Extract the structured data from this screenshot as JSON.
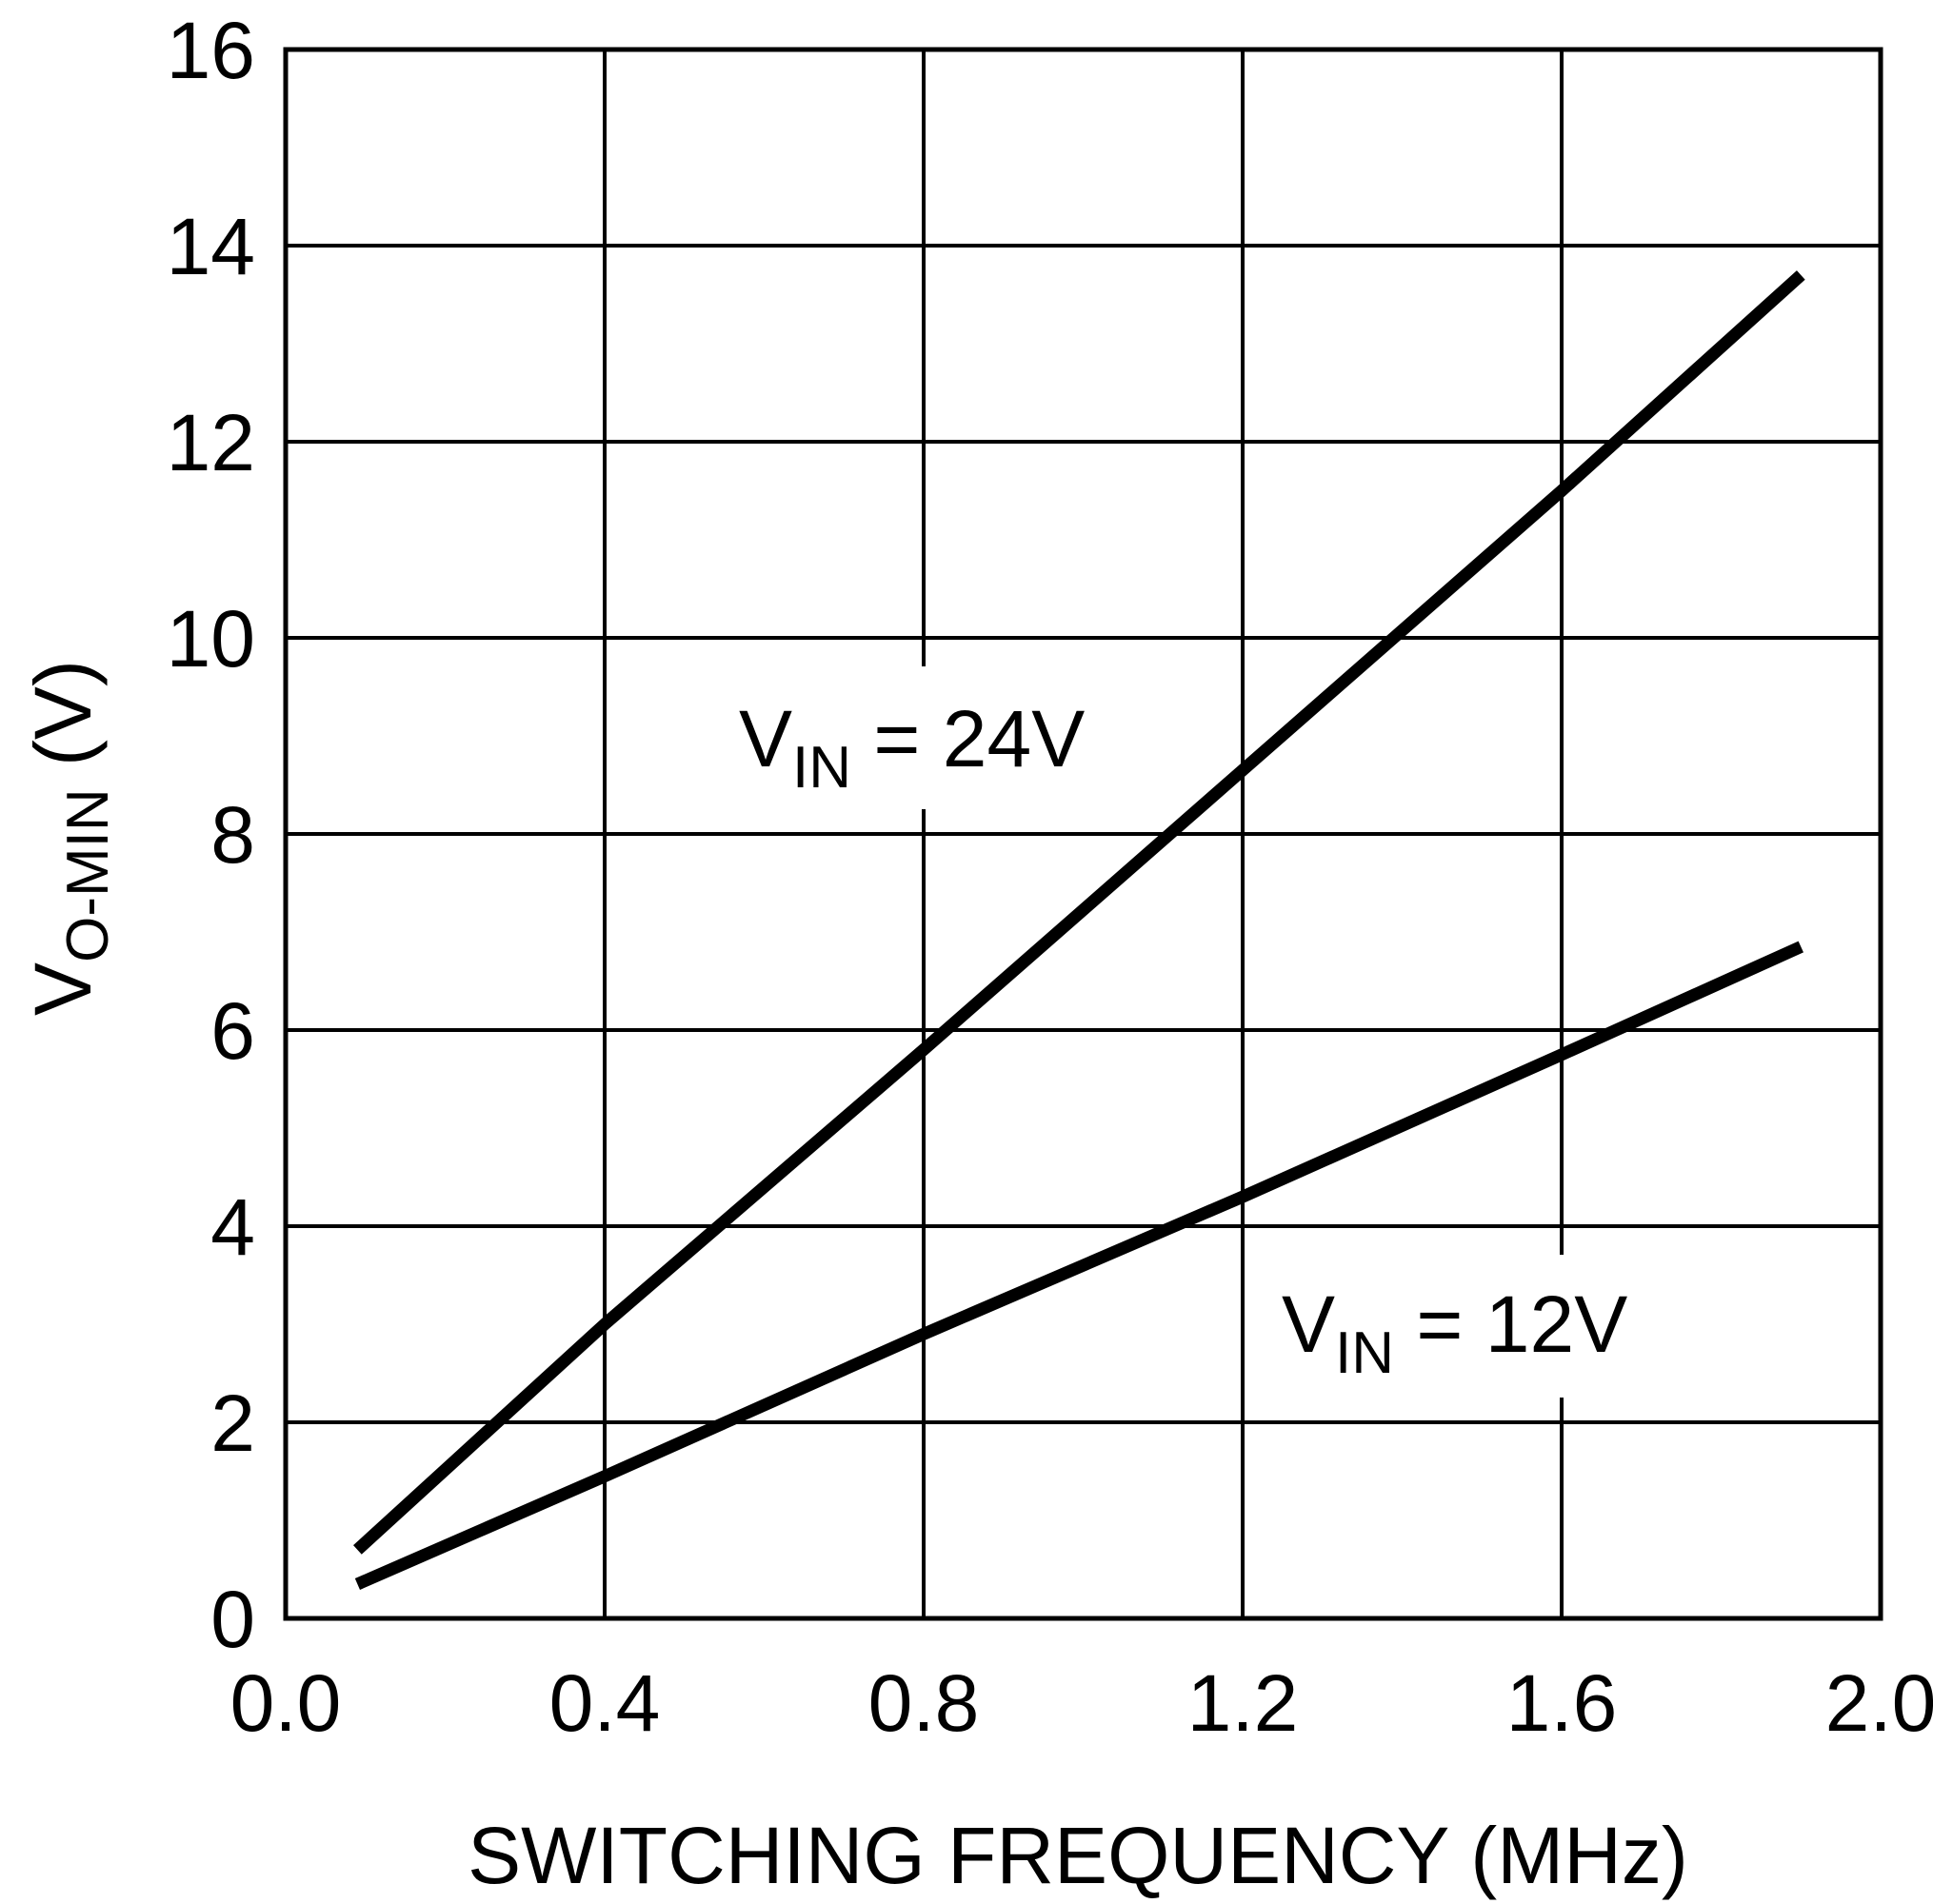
{
  "chart_data": {
    "type": "line",
    "title": "",
    "xlabel": "SWITCHING FREQUENCY  (MHz)",
    "ylabel": {
      "main": "V",
      "sub": "O-MIN",
      "suffix": " (V)"
    },
    "xlim": [
      0.0,
      2.0
    ],
    "ylim": [
      0,
      16
    ],
    "x_ticks": [
      0.0,
      0.4,
      0.8,
      1.2,
      1.6,
      2.0
    ],
    "x_tick_labels": [
      "0.0",
      "0.4",
      "0.8",
      "1.2",
      "1.6",
      "2.0"
    ],
    "y_ticks": [
      0,
      2,
      4,
      6,
      8,
      10,
      12,
      14,
      16
    ],
    "y_tick_labels": [
      "0",
      "2",
      "4",
      "6",
      "8",
      "10",
      "12",
      "14",
      "16"
    ],
    "grid": true,
    "series": [
      {
        "name": "VIN = 24V",
        "label": {
          "main": "V",
          "sub": "IN",
          "suffix": " = 24V"
        },
        "x": [
          0.09,
          0.4,
          0.8,
          1.2,
          1.6,
          1.9
        ],
        "y": [
          0.7,
          3.0,
          5.8,
          8.65,
          11.5,
          13.7
        ]
      },
      {
        "name": "VIN = 12V",
        "label": {
          "main": "V",
          "sub": "IN",
          "suffix": " = 12V"
        },
        "x": [
          0.09,
          0.4,
          0.8,
          1.2,
          1.6,
          1.9
        ],
        "y": [
          0.35,
          1.45,
          2.9,
          4.3,
          5.75,
          6.85
        ]
      }
    ],
    "colors": {
      "line": "#000000",
      "grid": "#000000",
      "background": "#ffffff"
    }
  }
}
